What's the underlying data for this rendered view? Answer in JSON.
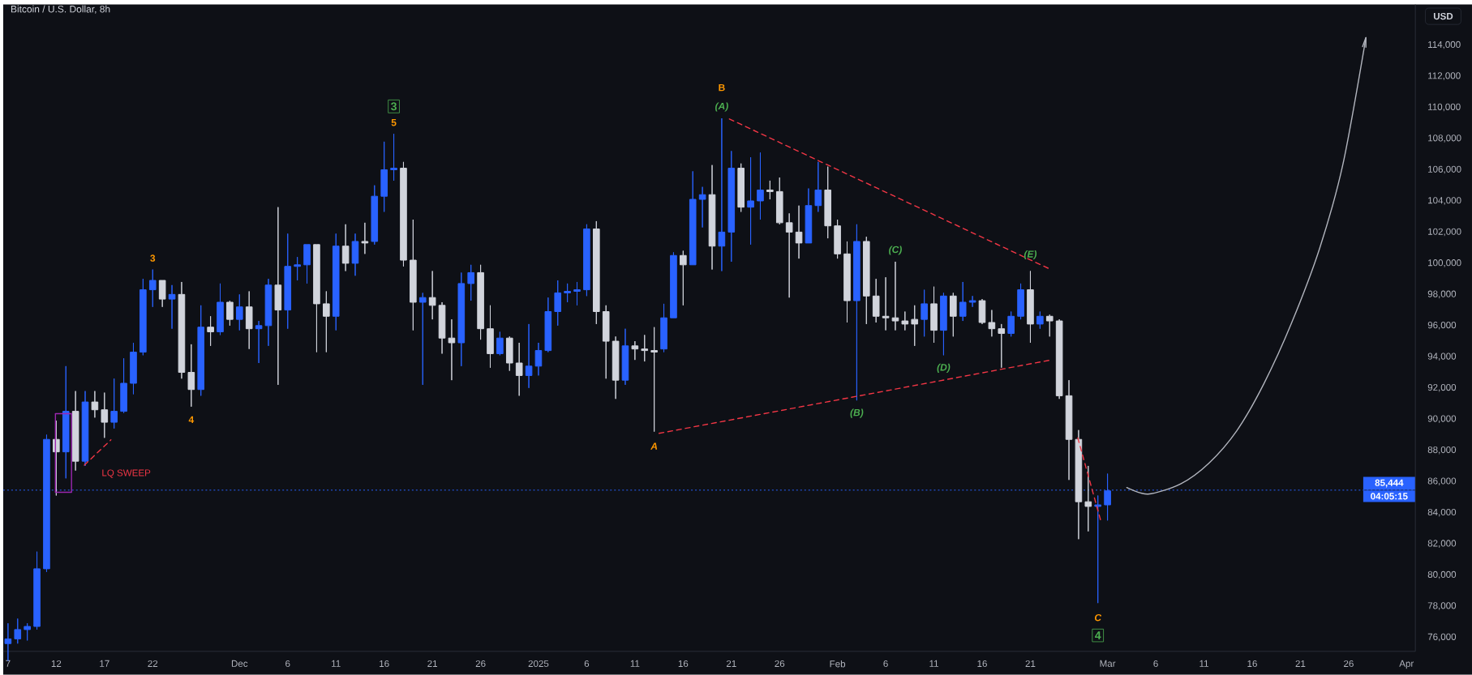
{
  "chart_data": {
    "type": "candlestick",
    "title": "Bitcoin / U.S. Dollar, 8h",
    "ylabel": "USD",
    "xlim": [
      "2024-11-06T12:00",
      "2025-04-01T22:00"
    ],
    "ylim": [
      75100,
      116600
    ],
    "xticks": [
      {
        "value": "2024-11-07",
        "label": "7"
      },
      {
        "value": "2024-11-12",
        "label": "12"
      },
      {
        "value": "2024-11-17",
        "label": "17"
      },
      {
        "value": "2024-11-22",
        "label": "22"
      },
      {
        "value": "2024-12-01",
        "label": "Dec"
      },
      {
        "value": "2024-12-06",
        "label": "6"
      },
      {
        "value": "2024-12-11",
        "label": "11"
      },
      {
        "value": "2024-12-16",
        "label": "16"
      },
      {
        "value": "2024-12-21",
        "label": "21"
      },
      {
        "value": "2024-12-26",
        "label": "26"
      },
      {
        "value": "2025-01-01",
        "label": "2025"
      },
      {
        "value": "2025-01-06",
        "label": "6"
      },
      {
        "value": "2025-01-11",
        "label": "11"
      },
      {
        "value": "2025-01-16",
        "label": "16"
      },
      {
        "value": "2025-01-21",
        "label": "21"
      },
      {
        "value": "2025-01-26",
        "label": "26"
      },
      {
        "value": "2025-02-01",
        "label": "Feb"
      },
      {
        "value": "2025-02-06",
        "label": "6"
      },
      {
        "value": "2025-02-11",
        "label": "11"
      },
      {
        "value": "2025-02-16",
        "label": "16"
      },
      {
        "value": "2025-02-21",
        "label": "21"
      },
      {
        "value": "2025-03-01",
        "label": "Mar"
      },
      {
        "value": "2025-03-06",
        "label": "6"
      },
      {
        "value": "2025-03-11",
        "label": "11"
      },
      {
        "value": "2025-03-16",
        "label": "16"
      },
      {
        "value": "2025-03-21",
        "label": "21"
      },
      {
        "value": "2025-03-26",
        "label": "26"
      },
      {
        "value": "2025-04-01",
        "label": "Apr"
      }
    ],
    "yticks": [
      {
        "value": 76000,
        "label": "76,000"
      },
      {
        "value": 78000,
        "label": "78,000"
      },
      {
        "value": 80000,
        "label": "80,000"
      },
      {
        "value": 82000,
        "label": "82,000"
      },
      {
        "value": 84000,
        "label": "84,000"
      },
      {
        "value": 86000,
        "label": "86,000"
      },
      {
        "value": 88000,
        "label": "88,000"
      },
      {
        "value": 90000,
        "label": "90,000"
      },
      {
        "value": 92000,
        "label": "92,000"
      },
      {
        "value": 94000,
        "label": "94,000"
      },
      {
        "value": 96000,
        "label": "96,000"
      },
      {
        "value": 98000,
        "label": "98,000"
      },
      {
        "value": 100000,
        "label": "100,000"
      },
      {
        "value": 102000,
        "label": "102,000"
      },
      {
        "value": 104000,
        "label": "104,000"
      },
      {
        "value": 106000,
        "label": "106,000"
      },
      {
        "value": 108000,
        "label": "108,000"
      },
      {
        "value": 110000,
        "label": "110,000"
      },
      {
        "value": 112000,
        "label": "112,000"
      },
      {
        "value": 114000,
        "label": "114,000"
      }
    ],
    "x": [
      "2024-11-07",
      "2024-11-08",
      "2024-11-09",
      "2024-11-10",
      "2024-11-11",
      "2024-11-12",
      "2024-11-13",
      "2024-11-14",
      "2024-11-15",
      "2024-11-16",
      "2024-11-17",
      "2024-11-18",
      "2024-11-19",
      "2024-11-20",
      "2024-11-21",
      "2024-11-22",
      "2024-11-23",
      "2024-11-24",
      "2024-11-25",
      "2024-11-26",
      "2024-11-27",
      "2024-11-28",
      "2024-11-29",
      "2024-11-30",
      "2024-12-01",
      "2024-12-02",
      "2024-12-03",
      "2024-12-04",
      "2024-12-05",
      "2024-12-06",
      "2024-12-07",
      "2024-12-08",
      "2024-12-09",
      "2024-12-10",
      "2024-12-11",
      "2024-12-12",
      "2024-12-13",
      "2024-12-14",
      "2024-12-15",
      "2024-12-16",
      "2024-12-17",
      "2024-12-18",
      "2024-12-19",
      "2024-12-20",
      "2024-12-21",
      "2024-12-22",
      "2024-12-23",
      "2024-12-24",
      "2024-12-25",
      "2024-12-26",
      "2024-12-27",
      "2024-12-28",
      "2024-12-29",
      "2024-12-30",
      "2024-12-31",
      "2025-01-01",
      "2025-01-02",
      "2025-01-03",
      "2025-01-04",
      "2025-01-05",
      "2025-01-06",
      "2025-01-07",
      "2025-01-08",
      "2025-01-09",
      "2025-01-10",
      "2025-01-11",
      "2025-01-12",
      "2025-01-13",
      "2025-01-14",
      "2025-01-15",
      "2025-01-16",
      "2025-01-17",
      "2025-01-18",
      "2025-01-19",
      "2025-01-20",
      "2025-01-21",
      "2025-01-22",
      "2025-01-23",
      "2025-01-24",
      "2025-01-25",
      "2025-01-26",
      "2025-01-27",
      "2025-01-28",
      "2025-01-29",
      "2025-01-30",
      "2025-01-31",
      "2025-02-01",
      "2025-02-02",
      "2025-02-03",
      "2025-02-04",
      "2025-02-05",
      "2025-02-06",
      "2025-02-07",
      "2025-02-08",
      "2025-02-09",
      "2025-02-10",
      "2025-02-11",
      "2025-02-12",
      "2025-02-13",
      "2025-02-14",
      "2025-02-15",
      "2025-02-16",
      "2025-02-17",
      "2025-02-18",
      "2025-02-19",
      "2025-02-20",
      "2025-02-21",
      "2025-02-22",
      "2025-02-23",
      "2025-02-24",
      "2025-02-25",
      "2025-02-26",
      "2025-02-27",
      "2025-02-28",
      "2025-03-01"
    ],
    "ohlc": [
      [
        75600,
        76900,
        74500,
        75900
      ],
      [
        75900,
        77200,
        75600,
        76500
      ],
      [
        76500,
        76900,
        75800,
        76700
      ],
      [
        76700,
        81500,
        76500,
        80400
      ],
      [
        80400,
        89000,
        80200,
        88700
      ],
      [
        88700,
        89900,
        85100,
        87900
      ],
      [
        87900,
        93400,
        86200,
        90500
      ],
      [
        90500,
        91800,
        86700,
        87300
      ],
      [
        87300,
        91800,
        87000,
        91100
      ],
      [
        91100,
        91800,
        90100,
        90600
      ],
      [
        90600,
        91700,
        88800,
        89800
      ],
      [
        89800,
        92600,
        89400,
        90500
      ],
      [
        90500,
        93900,
        90400,
        92300
      ],
      [
        92300,
        94900,
        91600,
        94300
      ],
      [
        94300,
        99000,
        94100,
        98300
      ],
      [
        98300,
        99600,
        97200,
        98900
      ],
      [
        98900,
        98900,
        97200,
        97700
      ],
      [
        97700,
        98600,
        95800,
        98000
      ],
      [
        98000,
        98800,
        92600,
        93000
      ],
      [
        93000,
        94800,
        90800,
        91900
      ],
      [
        91900,
        97300,
        91500,
        95900
      ],
      [
        95900,
        96600,
        94700,
        95600
      ],
      [
        95600,
        98700,
        95400,
        97500
      ],
      [
        97500,
        97600,
        96000,
        96400
      ],
      [
        96400,
        98000,
        95700,
        97200
      ],
      [
        97200,
        98200,
        94500,
        95800
      ],
      [
        95800,
        96300,
        93600,
        96000
      ],
      [
        96000,
        99000,
        94700,
        98600
      ],
      [
        98600,
        103600,
        92200,
        97000
      ],
      [
        97000,
        101900,
        95800,
        99800
      ],
      [
        99800,
        100400,
        98900,
        99900
      ],
      [
        99900,
        101200,
        98700,
        101200
      ],
      [
        101200,
        101200,
        94300,
        97400
      ],
      [
        97400,
        98200,
        94300,
        96600
      ],
      [
        96600,
        101900,
        95700,
        101100
      ],
      [
        101100,
        102500,
        99500,
        100000
      ],
      [
        100000,
        101900,
        99200,
        101400
      ],
      [
        101400,
        102600,
        100600,
        101300
      ],
      [
        101400,
        105000,
        101200,
        104300
      ],
      [
        104300,
        107800,
        103300,
        106000
      ],
      [
        106000,
        108300,
        105300,
        106100
      ],
      [
        106100,
        106500,
        99800,
        100200
      ],
      [
        100200,
        102800,
        95700,
        97500
      ],
      [
        97500,
        98100,
        92200,
        97800
      ],
      [
        97800,
        99500,
        96400,
        97300
      ],
      [
        97300,
        97500,
        94200,
        95200
      ],
      [
        95200,
        96400,
        92500,
        94900
      ],
      [
        94900,
        99400,
        93400,
        98700
      ],
      [
        98700,
        99900,
        97600,
        99400
      ],
      [
        99400,
        99900,
        95100,
        95800
      ],
      [
        95800,
        97300,
        93300,
        94200
      ],
      [
        94200,
        95600,
        94100,
        95200
      ],
      [
        95200,
        95300,
        93100,
        93600
      ],
      [
        93600,
        94900,
        91500,
        92800
      ],
      [
        92800,
        96100,
        92000,
        93400
      ],
      [
        93400,
        94900,
        92800,
        94400
      ],
      [
        94400,
        97800,
        94300,
        96900
      ],
      [
        96900,
        98900,
        96000,
        98100
      ],
      [
        98100,
        98700,
        97500,
        98200
      ],
      [
        98200,
        98800,
        97300,
        98300
      ],
      [
        98300,
        102500,
        97900,
        102200
      ],
      [
        102200,
        102700,
        96100,
        96900
      ],
      [
        96900,
        97300,
        92600,
        95000
      ],
      [
        95000,
        95300,
        91300,
        92500
      ],
      [
        92500,
        95800,
        92200,
        94700
      ],
      [
        94700,
        95000,
        93800,
        94500
      ],
      [
        94500,
        95400,
        93700,
        94400
      ],
      [
        94400,
        95900,
        89200,
        94300
      ],
      [
        94500,
        97400,
        94300,
        96500
      ],
      [
        96500,
        100700,
        96500,
        100500
      ],
      [
        100500,
        100800,
        97300,
        99900
      ],
      [
        99900,
        105900,
        99900,
        104100
      ],
      [
        104100,
        104900,
        102300,
        104400
      ],
      [
        104400,
        106300,
        99600,
        101100
      ],
      [
        101100,
        109300,
        99500,
        102000
      ],
      [
        102000,
        107200,
        100100,
        106100
      ],
      [
        106100,
        106400,
        103300,
        103600
      ],
      [
        103600,
        106800,
        101200,
        104000
      ],
      [
        104000,
        107100,
        102800,
        104700
      ],
      [
        104700,
        105300,
        104100,
        104600
      ],
      [
        104600,
        105500,
        102500,
        102600
      ],
      [
        102600,
        103200,
        97800,
        102000
      ],
      [
        102000,
        103700,
        100300,
        101300
      ],
      [
        101300,
        104800,
        101300,
        103700
      ],
      [
        103700,
        106500,
        103300,
        104700
      ],
      [
        104700,
        106200,
        101600,
        102400
      ],
      [
        102400,
        102800,
        100300,
        100600
      ],
      [
        100600,
        101400,
        96200,
        97600
      ],
      [
        97600,
        102500,
        91200,
        101400
      ],
      [
        101400,
        101700,
        96100,
        97900
      ],
      [
        97900,
        99000,
        96200,
        96600
      ],
      [
        96600,
        99100,
        95700,
        96500
      ],
      [
        96500,
        100100,
        95700,
        96300
      ],
      [
        96300,
        96900,
        95700,
        96100
      ],
      [
        96100,
        97300,
        94700,
        96400
      ],
      [
        96400,
        98300,
        95300,
        97400
      ],
      [
        97400,
        98500,
        94900,
        95700
      ],
      [
        95700,
        98100,
        94100,
        97900
      ],
      [
        97900,
        98100,
        95300,
        96600
      ],
      [
        96600,
        98800,
        96300,
        97500
      ],
      [
        97500,
        97900,
        97200,
        97600
      ],
      [
        97600,
        97700,
        96100,
        96200
      ],
      [
        96200,
        97000,
        95300,
        95800
      ],
      [
        95800,
        96100,
        93300,
        95500
      ],
      [
        95500,
        96900,
        95300,
        96600
      ],
      [
        96600,
        98700,
        96400,
        98300
      ],
      [
        98300,
        99500,
        94900,
        96100
      ],
      [
        96100,
        96900,
        95800,
        96600
      ],
      [
        96600,
        96700,
        95300,
        96300
      ],
      [
        96300,
        96400,
        91300,
        91500
      ],
      [
        91500,
        92500,
        86100,
        88700
      ],
      [
        88700,
        89300,
        82300,
        84700
      ],
      [
        84700,
        87000,
        82800,
        84400
      ],
      [
        84400,
        85100,
        78200,
        84500
      ],
      [
        84500,
        86500,
        83500,
        85400
      ]
    ],
    "colors": [
      "#2962ff",
      "#2962ff",
      "#2962ff",
      "#2962ff",
      "#2962ff",
      "#d1d4dc",
      "#2962ff",
      "#d1d4dc",
      "#2962ff",
      "#d1d4dc",
      "#d1d4dc",
      "#2962ff",
      "#2962ff",
      "#2962ff",
      "#2962ff",
      "#2962ff",
      "#d1d4dc",
      "#2962ff",
      "#d1d4dc",
      "#d1d4dc",
      "#2962ff",
      "#d1d4dc",
      "#2962ff",
      "#d1d4dc",
      "#2962ff",
      "#d1d4dc",
      "#2962ff",
      "#2962ff",
      "#d1d4dc",
      "#2962ff",
      "#2962ff",
      "#2962ff",
      "#d1d4dc",
      "#d1d4dc",
      "#2962ff",
      "#d1d4dc",
      "#2962ff",
      "#d1d4dc",
      "#2962ff",
      "#2962ff",
      "#2962ff",
      "#d1d4dc",
      "#d1d4dc",
      "#2962ff",
      "#d1d4dc",
      "#d1d4dc",
      "#d1d4dc",
      "#2962ff",
      "#2962ff",
      "#d1d4dc",
      "#d1d4dc",
      "#2962ff",
      "#d1d4dc",
      "#d1d4dc",
      "#2962ff",
      "#2962ff",
      "#2962ff",
      "#2962ff",
      "#2962ff",
      "#2962ff",
      "#2962ff",
      "#d1d4dc",
      "#d1d4dc",
      "#d1d4dc",
      "#2962ff",
      "#d1d4dc",
      "#d1d4dc",
      "#d1d4dc",
      "#2962ff",
      "#2962ff",
      "#d1d4dc",
      "#2962ff",
      "#2962ff",
      "#d1d4dc",
      "#2962ff",
      "#2962ff",
      "#d1d4dc",
      "#2962ff",
      "#2962ff",
      "#d1d4dc",
      "#d1d4dc",
      "#d1d4dc",
      "#d1d4dc",
      "#2962ff",
      "#2962ff",
      "#d1d4dc",
      "#d1d4dc",
      "#d1d4dc",
      "#2962ff",
      "#d1d4dc",
      "#d1d4dc",
      "#d1d4dc",
      "#d1d4dc",
      "#d1d4dc",
      "#d1d4dc",
      "#2962ff",
      "#d1d4dc",
      "#2962ff",
      "#d1d4dc",
      "#2962ff",
      "#2962ff",
      "#d1d4dc",
      "#d1d4dc",
      "#d1d4dc",
      "#2962ff",
      "#2962ff",
      "#d1d4dc",
      "#2962ff",
      "#d1d4dc",
      "#d1d4dc",
      "#d1d4dc",
      "#d1d4dc",
      "#d1d4dc",
      "#2962ff",
      "#2962ff"
    ],
    "series": [
      {
        "type": "line",
        "color": "#f23645",
        "line_style": "dashed",
        "x": [
          "2025-01-20T19:00",
          "2025-02-23T03:00"
        ],
        "values": [
          109260,
          99600
        ]
      },
      {
        "type": "line",
        "color": "#f23645",
        "line_style": "dashed",
        "x": [
          "2025-01-13T12:00",
          "2025-02-22T22:00"
        ],
        "values": [
          89090,
          93770
        ]
      },
      {
        "type": "line",
        "color": "#f23645",
        "line_style": "dashed",
        "x": [
          "2024-11-14T22:00",
          "2024-11-17T16:00"
        ],
        "values": [
          87050,
          88670
        ]
      },
      {
        "type": "line",
        "color": "#f23645",
        "line_style": "dashed",
        "x": [
          "2025-02-25T22:00",
          "2025-02-28T08:00"
        ],
        "values": [
          88800,
          83400
        ]
      },
      {
        "type": "line",
        "color": "#9c27b0",
        "line_style": "solid",
        "x": [
          "2024-11-11T22:00",
          "2024-11-13T14:00"
        ],
        "values": [
          90350,
          90350
        ]
      },
      {
        "type": "line",
        "color": "#9c27b0",
        "line_style": "solid",
        "x": [
          "2024-11-11T22:00",
          "2024-11-13T14:00"
        ],
        "values": [
          85310,
          85310
        ]
      },
      {
        "type": "line",
        "color": "#b2b5be",
        "line_style": "solid",
        "x": [
          "2025-03-03T00:00",
          "2025-03-05T05:00",
          "2025-03-08T14:00",
          "2025-03-11T12:00",
          "2025-03-14T10:00",
          "2025-03-17T05:00",
          "2025-03-20T02:00",
          "2025-03-23T00:00",
          "2025-03-25T10:00",
          "2025-03-27T19:00"
        ],
        "values": [
          85610,
          85190,
          85850,
          87170,
          89270,
          92270,
          96170,
          100970,
          106380,
          114480
        ]
      }
    ],
    "ref_lines": [
      {
        "axis": "y",
        "value": 85444,
        "label": "85,444",
        "color": "#2962ff",
        "line_style": "dotted"
      }
    ],
    "annotations": [
      {
        "text": "3",
        "x": "2024-11-22",
        "y": 99600
      },
      {
        "text": "4",
        "x": "2024-11-26",
        "y": 90800
      },
      {
        "text": "5",
        "x": "2024-12-17",
        "y": 108300
      },
      {
        "text": "3",
        "x": "2024-12-17",
        "y": 108300
      },
      {
        "text": "B",
        "x": "2025-01-20",
        "y": 109300
      },
      {
        "text": "(A)",
        "x": "2025-01-20",
        "y": 109300
      },
      {
        "text": "A",
        "x": "2025-01-13",
        "y": 89200
      },
      {
        "text": "(B)",
        "x": "2025-02-03",
        "y": 91200
      },
      {
        "text": "(C)",
        "x": "2025-02-07",
        "y": 100100
      },
      {
        "text": "(D)",
        "x": "2025-02-12",
        "y": 94100
      },
      {
        "text": "(E)",
        "x": "2025-02-21",
        "y": 99500
      },
      {
        "text": "C",
        "x": "2025-02-28",
        "y": 78200
      },
      {
        "text": "4",
        "x": "2025-02-28",
        "y": 78200
      },
      {
        "text": "LQ SWEEP",
        "x": "2024-11-14T22:00",
        "y": 87050
      },
      "04:05:15"
    ]
  }
}
